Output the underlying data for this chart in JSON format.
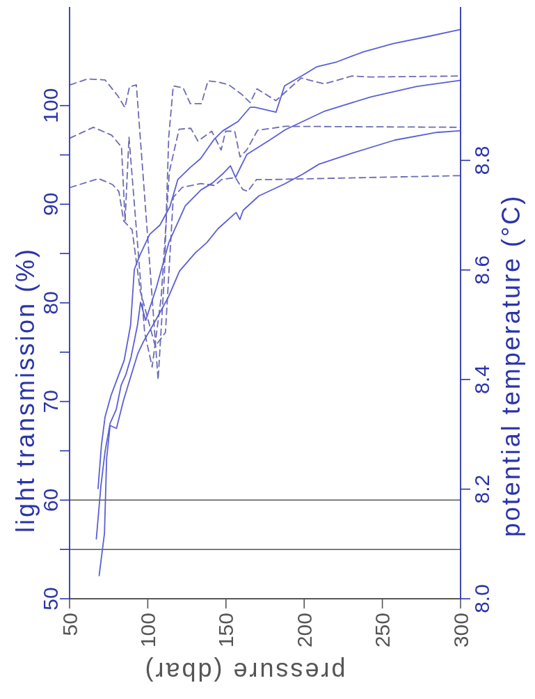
{
  "chart_data": {
    "type": "line",
    "xlabel": "pressure (dbar)",
    "ylabel": "light transmission (%)",
    "y2label": "potential temperature (°C)",
    "xlim": [
      50,
      300
    ],
    "xticks": [
      50,
      100,
      150,
      200,
      250,
      300
    ],
    "ylim": [
      50,
      110
    ],
    "yticks": [
      50,
      {
        "value": 55,
        "label": null
      },
      60,
      {
        "value": 65,
        "label": null
      },
      70,
      {
        "value": 75,
        "label": null
      },
      80,
      {
        "value": 85,
        "label": null
      },
      90,
      {
        "value": 95,
        "label": null
      },
      100
    ],
    "y2lim": [
      8.0,
      9.08
    ],
    "y2ticks": [
      {
        "value": 8.0,
        "label": "8.0"
      },
      8.2,
      8.4,
      8.6,
      8.8
    ],
    "ref_lines": [
      {
        "axis": "y",
        "value": 60,
        "color": "#555555"
      },
      {
        "axis": "y",
        "value": 55,
        "color": "#555555"
      }
    ],
    "series": [
      {
        "color": "#6b6bb5",
        "line_style": "dashed",
        "x": [
          50.4,
          61.5,
          72.7,
          80.8,
          85.4,
          88.3,
          92.7,
          101.8,
          106.6,
          110.6,
          113.4,
          116.3,
          122.6,
          127.2,
          134.3,
          138.5,
          144.8,
          151.9,
          159.6,
          165.5,
          169.8,
          181.9,
          198.1,
          212.9,
          230.6,
          242.6,
          300
        ],
        "values": [
          102.1,
          102.7,
          102.6,
          101.0,
          99.8,
          101.9,
          102.1,
          82.7,
          72.2,
          82.7,
          96.8,
          102.0,
          101.8,
          100.2,
          100.2,
          102.5,
          102.4,
          102.1,
          101.2,
          100.3,
          101.7,
          100.5,
          102.8,
          102.2,
          103.0,
          102.9,
          103.0
        ]
      },
      {
        "color": "#6b6bb5",
        "line_style": "dashed",
        "x": [
          50.2,
          65.2,
          76.9,
          83.2,
          85.5,
          88.0,
          98.0,
          102.8,
          108.6,
          113.8,
          120.0,
          127.5,
          132.1,
          140.9,
          146.9,
          149.8,
          155.6,
          159.0,
          163.3,
          170.2,
          188.0,
          300
        ],
        "values": [
          96.7,
          97.8,
          97.0,
          95.8,
          88.3,
          96.8,
          77.0,
          73.5,
          80.6,
          93.3,
          97.6,
          97.7,
          96.4,
          97.4,
          95.5,
          97.4,
          97.4,
          94.8,
          95.5,
          97.5,
          97.9,
          97.8
        ]
      },
      {
        "color": "#6b6bb5",
        "line_style": "dashed",
        "x": [
          50.4,
          68.5,
          77.4,
          81.5,
          84.6,
          90.0,
          95.2,
          104.8,
          111.3,
          116.3,
          122.0,
          133.9,
          142.8,
          147.2,
          156.1,
          160.7,
          163.9,
          169.5,
          178.4,
          300
        ],
        "values": [
          91.7,
          92.6,
          92.0,
          91.3,
          88.3,
          87.4,
          81.2,
          75.6,
          77.0,
          90.7,
          91.7,
          92.1,
          91.9,
          92.5,
          92.7,
          91.5,
          91.3,
          92.5,
          92.5,
          92.9
        ]
      },
      {
        "color": "#5a5fd6",
        "line_style": "solid",
        "axis": "y2",
        "x": [
          68.2,
          70.4,
          72.7,
          76.5,
          80.7,
          84.9,
          89.0,
          91.4,
          94.8,
          101.2,
          107.8,
          114.2,
          119.2,
          127.1,
          133.7,
          142.3,
          148.0,
          157.7,
          165.5,
          168.6,
          182.0,
          187.5,
          200.7,
          208.2,
          220.2,
          237.7,
          256.9,
          279.0,
          299.9
        ],
        "values": [
          8.201,
          8.281,
          8.332,
          8.371,
          8.403,
          8.435,
          8.499,
          8.601,
          8.626,
          8.665,
          8.682,
          8.716,
          8.765,
          8.787,
          8.803,
          8.838,
          8.854,
          8.871,
          8.897,
          8.897,
          8.888,
          8.936,
          8.958,
          8.971,
          8.979,
          8.998,
          9.013,
          9.026,
          9.039
        ]
      },
      {
        "color": "#5a5fd6",
        "line_style": "solid",
        "axis": "y2",
        "x": [
          67.1,
          70.0,
          72.7,
          75.9,
          79.8,
          83.0,
          86.0,
          89.3,
          93.4,
          95.4,
          98.7,
          105.4,
          113.7,
          124.0,
          134.0,
          141.5,
          148.5,
          152.9,
          156.1,
          163.4,
          177.9,
          188.0,
          213.2,
          242.8,
          272.1,
          300
        ],
        "values": [
          8.109,
          8.205,
          8.269,
          8.32,
          8.345,
          8.39,
          8.409,
          8.441,
          8.499,
          8.541,
          8.508,
          8.567,
          8.652,
          8.717,
          8.746,
          8.759,
          8.777,
          8.79,
          8.769,
          8.811,
          8.837,
          8.856,
          8.89,
          8.916,
          8.935,
          8.946
        ]
      },
      {
        "color": "#5a5fd6",
        "line_style": "solid",
        "axis": "y2",
        "x": [
          68.9,
          72.3,
          73.7,
          75.9,
          80.0,
          84.5,
          89.5,
          93.7,
          97.2,
          105.8,
          113.1,
          120.3,
          130.3,
          137.8,
          144.8,
          156.5,
          158.9,
          161.0,
          171.0,
          187.4,
          199.2,
          209.4,
          231.5,
          257.9,
          284.7,
          299.3
        ],
        "values": [
          8.042,
          8.119,
          8.256,
          8.316,
          8.311,
          8.362,
          8.409,
          8.448,
          8.469,
          8.512,
          8.55,
          8.598,
          8.631,
          8.65,
          8.675,
          8.705,
          8.692,
          8.709,
          8.735,
          8.757,
          8.775,
          8.793,
          8.814,
          8.837,
          8.851,
          8.854
        ]
      }
    ]
  }
}
